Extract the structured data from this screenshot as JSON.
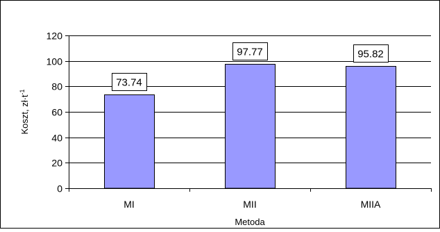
{
  "chart_data": {
    "type": "bar",
    "title": "",
    "xlabel": "Metoda",
    "ylabel": "Koszt, zł·t",
    "ylabel_superscript": "-1",
    "categories": [
      "MI",
      "MII",
      "MIIA"
    ],
    "values": [
      73.74,
      97.77,
      95.82
    ],
    "value_labels": [
      "73.74",
      "97.77",
      "95.82"
    ],
    "ylim": [
      0,
      120
    ],
    "yticks": [
      0,
      20,
      40,
      60,
      80,
      100,
      120
    ],
    "grid": "horizontal",
    "legend": "none",
    "colors": {
      "bar_fill": "#9999ff",
      "bar_stroke": "#000000",
      "grid": "#000000",
      "axis": "#000000",
      "label_box_fill": "#ffffff",
      "label_box_stroke": "#000000"
    }
  }
}
